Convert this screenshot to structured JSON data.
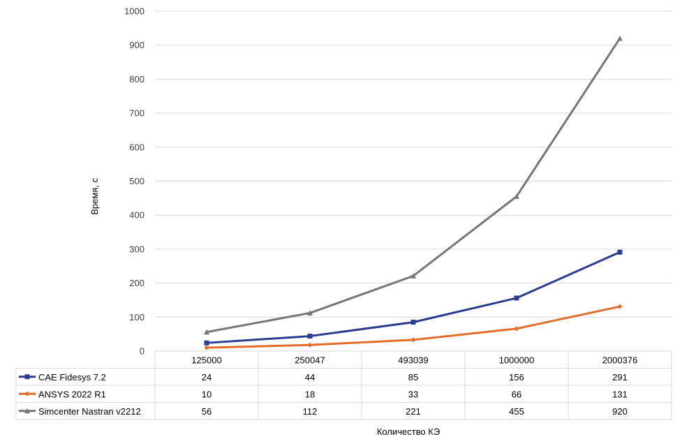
{
  "chart_data": {
    "type": "line",
    "title": "",
    "xlabel": "Количество КЭ",
    "ylabel": "Время, с",
    "ylim": [
      0,
      1000
    ],
    "yticks": [
      0,
      100,
      200,
      300,
      400,
      500,
      600,
      700,
      800,
      900,
      1000
    ],
    "grid": true,
    "legend": "table-left",
    "data_table": true,
    "categories": [
      "125000",
      "250047",
      "493039",
      "1000000",
      "2000376"
    ],
    "series": [
      {
        "name": "CAE Fidesys 7.2",
        "color": "#2B3B8F",
        "marker": "square",
        "values": [
          24,
          44,
          85,
          156,
          291
        ]
      },
      {
        "name": "ANSYS 2022 R1",
        "color": "#E46C2A",
        "marker": "diamond",
        "values": [
          10,
          18,
          33,
          66,
          131
        ]
      },
      {
        "name": "Simcenter Nastran v2212",
        "color": "#767676",
        "marker": "triangle",
        "values": [
          56,
          112,
          221,
          455,
          920
        ]
      }
    ]
  }
}
